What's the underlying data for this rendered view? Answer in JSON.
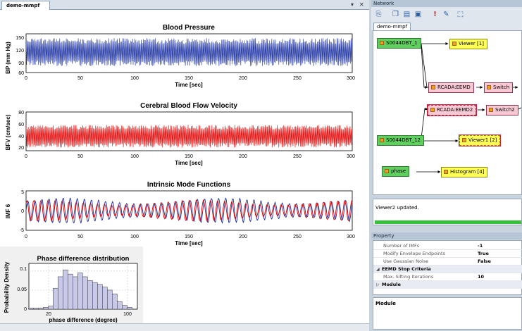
{
  "document": {
    "tab_label": "demo-mmpf",
    "dropdown_glyph": "▾",
    "close_glyph": "✕"
  },
  "plots": [
    {
      "title": "Blood Pressure",
      "ylabel": "BP (mm Hg)",
      "xlabel": "Time [sec]",
      "yticks": [
        "150",
        "120",
        "90",
        "60"
      ],
      "xticks": [
        "0",
        "50",
        "100",
        "150",
        "200",
        "250",
        "300"
      ],
      "color": "#1a2fa0"
    },
    {
      "title": "Cerebral Blood Flow Velocity",
      "ylabel": "BFV (cm/sec)",
      "xlabel": "Time [sec]",
      "yticks": [
        "80",
        "60",
        "40",
        "20"
      ],
      "xticks": [
        "0",
        "50",
        "100",
        "150",
        "200",
        "250",
        "300"
      ],
      "color": "#e00000"
    },
    {
      "title": "Intrinsic Mode Functions",
      "ylabel": "IMF 6",
      "xlabel": "Time [sec]",
      "yticks": [
        "5",
        "0",
        "-5"
      ],
      "xticks": [
        "0",
        "50",
        "100",
        "150",
        "200",
        "250",
        "300"
      ],
      "colors": [
        "#1a2fa0",
        "#e00000"
      ]
    },
    {
      "title": "Phase difference distribution",
      "ylabel": "Probability Density",
      "xlabel": "phase difference (degree)",
      "yticks": [
        "0.1",
        "0.05",
        "0"
      ],
      "xticks": [
        "20",
        "100"
      ]
    }
  ],
  "chart_data": [
    {
      "type": "line",
      "title": "Blood Pressure",
      "xlabel": "Time [sec]",
      "ylabel": "BP (mm Hg)",
      "xlim": [
        0,
        300
      ],
      "ylim": [
        60,
        150
      ],
      "series": [
        {
          "x_range": [
            0,
            300
          ],
          "approx_min": 75,
          "approx_max": 140,
          "approx_period_sec": 1
        }
      ],
      "grid": false
    },
    {
      "type": "line",
      "title": "Cerebral Blood Flow Velocity",
      "xlabel": "Time [sec]",
      "ylabel": "BFV (cm/sec)",
      "xlim": [
        0,
        300
      ],
      "ylim": [
        20,
        80
      ],
      "series": [
        {
          "x_range": [
            0,
            300
          ],
          "approx_min": 25,
          "approx_max": 60,
          "approx_period_sec": 1
        }
      ],
      "grid": false
    },
    {
      "type": "line",
      "title": "Intrinsic Mode Functions",
      "xlabel": "Time [sec]",
      "ylabel": "IMF 6",
      "xlim": [
        0,
        300
      ],
      "ylim": [
        -5,
        5
      ],
      "series": [
        {
          "approx_amplitude": 3,
          "approx_period_sec": 6.5
        },
        {
          "approx_amplitude": 2.5,
          "approx_period_sec": 6.5
        }
      ],
      "grid": false
    },
    {
      "type": "bar",
      "title": "Phase difference distribution",
      "xlabel": "phase difference (degree)",
      "ylabel": "Probability Density",
      "xlim": [
        0,
        110
      ],
      "ylim": [
        0,
        0.12
      ],
      "categories": [
        2,
        7,
        12,
        17,
        22,
        27,
        32,
        37,
        42,
        47,
        52,
        57,
        62,
        67,
        72,
        77,
        82,
        87,
        92,
        97,
        102
      ],
      "values": [
        0.003,
        0.003,
        0.003,
        0.005,
        0.008,
        0.055,
        0.085,
        0.103,
        0.092,
        0.085,
        0.095,
        0.085,
        0.075,
        0.07,
        0.065,
        0.058,
        0.05,
        0.04,
        0.02,
        0.01,
        0.005
      ],
      "grid": true
    }
  ],
  "network": {
    "title": "Network",
    "tab": "demo-mmpf",
    "toolbar": [
      {
        "name": "open-icon",
        "glyph": "⎘"
      },
      {
        "name": "copy-icon",
        "glyph": "❐"
      },
      {
        "name": "save-icon",
        "glyph": "▤"
      },
      {
        "name": "export-icon",
        "glyph": "▣"
      },
      {
        "name": "alert-icon",
        "glyph": "!"
      },
      {
        "name": "pin-icon",
        "glyph": "✎"
      },
      {
        "name": "select-icon",
        "glyph": "⬚"
      }
    ],
    "nodes": [
      {
        "id": "s1",
        "label": "S0044DBT_1",
        "style": "green"
      },
      {
        "id": "v1",
        "label": "Viewer [1]",
        "style": "yellow"
      },
      {
        "id": "r1",
        "label": "RCADA:EEMD",
        "style": "pink"
      },
      {
        "id": "sw1",
        "label": "Switch",
        "style": "pink"
      },
      {
        "id": "r2",
        "label": "RCADA:EEMD2",
        "style": "pink"
      },
      {
        "id": "sw2",
        "label": "Switch2",
        "style": "pink"
      },
      {
        "id": "s2",
        "label": "S0044DBT_12",
        "style": "green"
      },
      {
        "id": "v2",
        "label": "Viewer1 [2]",
        "style": "yellow"
      },
      {
        "id": "ph",
        "label": "phase",
        "style": "green"
      },
      {
        "id": "hi",
        "label": "Histogram [4]",
        "style": "yellow"
      }
    ]
  },
  "status": {
    "message": "Viewer2 updated.",
    "progress_percent": 100,
    "progress_color": "#36c236"
  },
  "property": {
    "title": "Property",
    "rows": [
      {
        "name": "Number of IMFs",
        "value": "-1",
        "kind": "prop"
      },
      {
        "name": "Modify Envelope Endpoints",
        "value": "True",
        "kind": "prop"
      },
      {
        "name": "Use Gaussian Noise",
        "value": "False",
        "kind": "prop"
      },
      {
        "name": "EEMD Stop Criteria",
        "value": "",
        "kind": "cat",
        "exp": "◢"
      },
      {
        "name": "Max. Sifting Iterations",
        "value": "10",
        "kind": "prop"
      },
      {
        "name": "Module",
        "value": "",
        "kind": "cat",
        "exp": "▷"
      }
    ],
    "description_title": "Module"
  }
}
